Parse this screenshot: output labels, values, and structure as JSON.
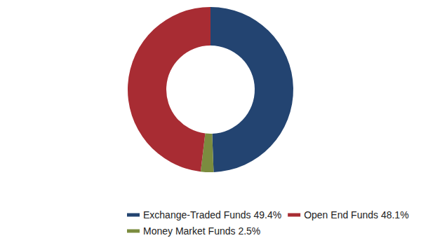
{
  "chart_data": {
    "type": "pie",
    "categories": [
      "Exchange-Traded Funds 49.4%",
      "Money Market Funds 2.5%",
      "Open End Funds 48.1%"
    ],
    "values": [
      49.4,
      2.5,
      48.1
    ],
    "colors": [
      "#234471",
      "#7b8c3f",
      "#a82c33"
    ],
    "legend": "bottom"
  }
}
